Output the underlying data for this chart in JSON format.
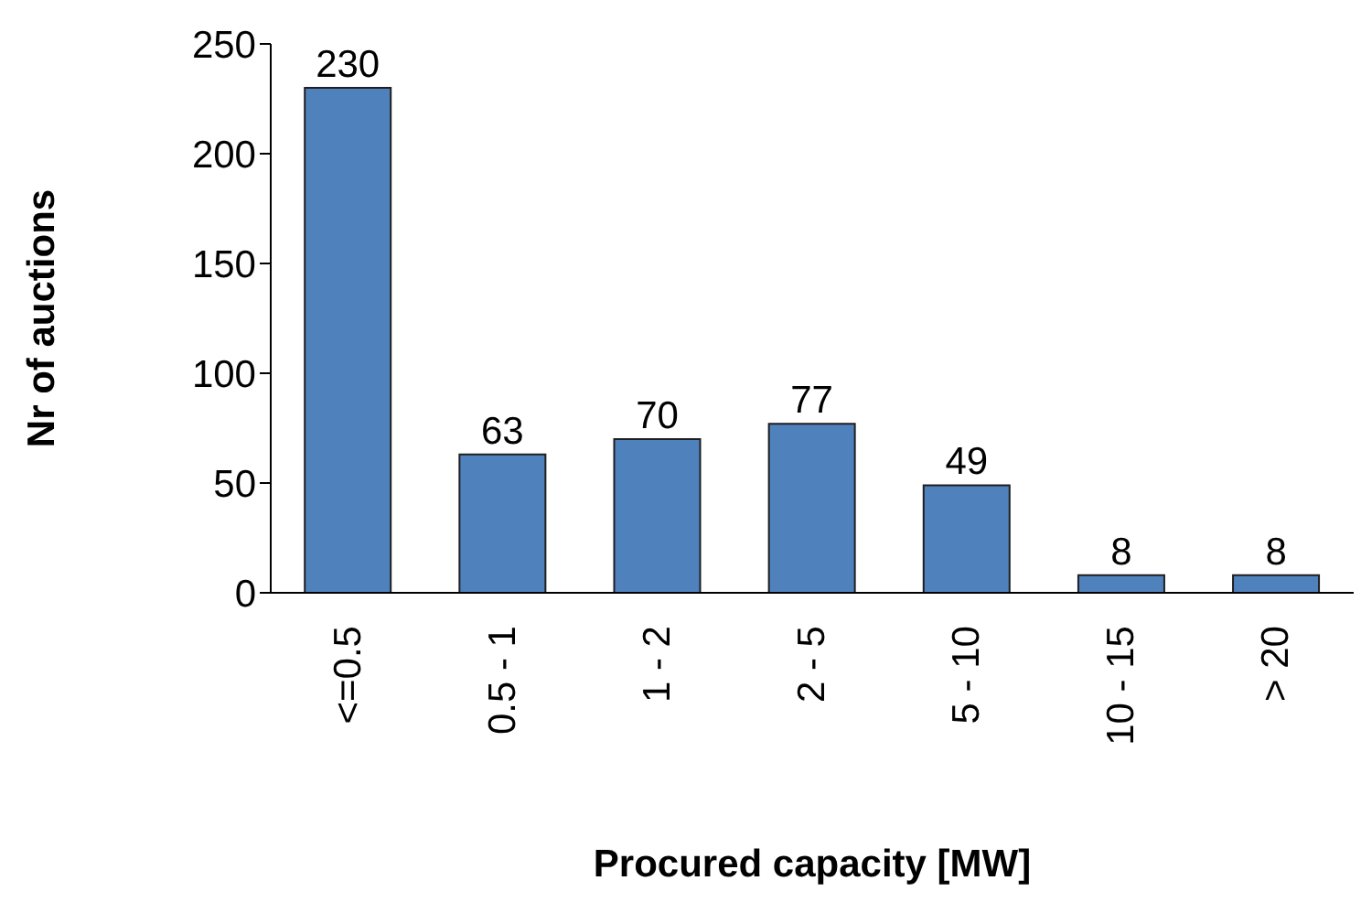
{
  "chart_data": {
    "type": "bar",
    "xlabel": "Procured capacity [MW]",
    "ylabel": "Nr of auctions",
    "categories": [
      "<=0.5",
      "0.5 - 1",
      "1 - 2",
      "2 - 5",
      "5 - 10",
      "10 - 15",
      "> 20"
    ],
    "values": [
      230,
      63,
      70,
      77,
      49,
      8,
      8
    ],
    "color": "#4f81bd",
    "ylim": [
      0,
      250
    ],
    "yticks": [
      0,
      50,
      100,
      150,
      200,
      250
    ],
    "data_labels": true,
    "grid": false,
    "legend": false
  }
}
